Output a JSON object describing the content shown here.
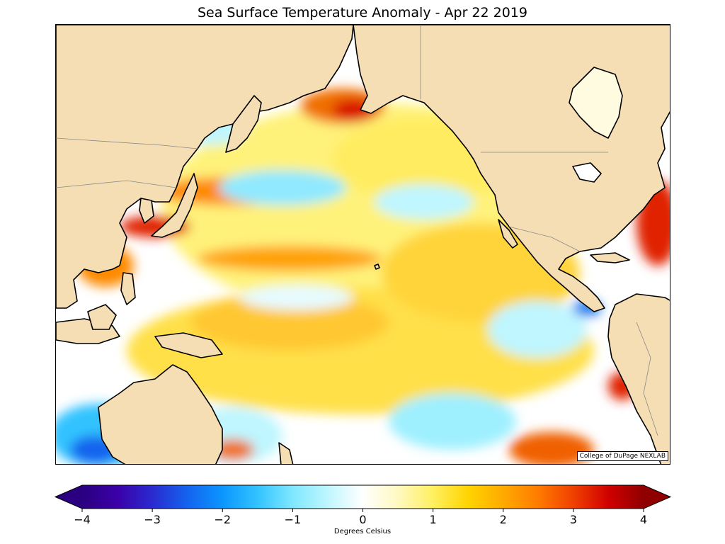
{
  "title": "Sea Surface Temperature Anomaly - Apr 22 2019",
  "credit": "College of DuPage NEXLAB",
  "colorbar": {
    "label": "Degrees Celsius",
    "min": -4,
    "max": 4,
    "ticks": [
      "−4",
      "−3",
      "−2",
      "−1",
      "0",
      "1",
      "2",
      "3",
      "4"
    ],
    "colors": [
      "#2a0080",
      "#3b00a8",
      "#2a2ad0",
      "#1463ee",
      "#0a96ff",
      "#32c3ff",
      "#7fe8ff",
      "#bff6ff",
      "#ffffff",
      "#fff9c0",
      "#fff060",
      "#ffd400",
      "#ffaa00",
      "#ff7a00",
      "#f04000",
      "#d00000",
      "#900000"
    ]
  },
  "map": {
    "land_color": "#f5deb3",
    "coast_color": "#000000",
    "border_color": "#888888"
  }
}
